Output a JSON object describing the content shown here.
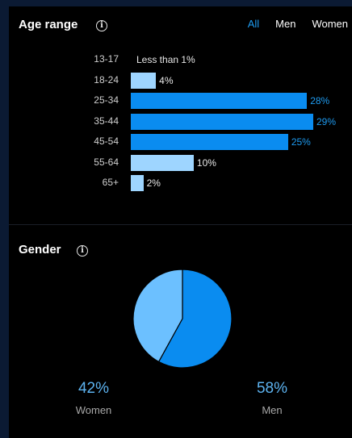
{
  "age_section": {
    "title": "Age range",
    "info_icon": "info-icon",
    "filters": [
      "All",
      "Men",
      "Women"
    ],
    "active_filter": "All"
  },
  "gender_section": {
    "title": "Gender",
    "info_icon": "info-icon",
    "women": {
      "value": "42%",
      "label": "Women"
    },
    "men": {
      "value": "58%",
      "label": "Men"
    }
  },
  "colors": {
    "accent": "#1e9bf0",
    "bar_high": "#0a8cf0",
    "bar_low": "#9ed5ff",
    "pie_men": "#0a8cf0",
    "pie_women": "#6cc0ff"
  },
  "chart_data": [
    {
      "type": "bar",
      "orientation": "horizontal",
      "categories": [
        "13-17",
        "18-24",
        "25-34",
        "35-44",
        "45-54",
        "55-64",
        "65+"
      ],
      "values": [
        0.5,
        4,
        28,
        29,
        25,
        10,
        2
      ],
      "value_labels": [
        "Less than 1%",
        "4%",
        "28%",
        "29%",
        "25%",
        "10%",
        "2%"
      ],
      "xlim": [
        0,
        29
      ]
    },
    {
      "type": "pie",
      "categories": [
        "Women",
        "Men"
      ],
      "values": [
        42,
        58
      ]
    }
  ]
}
